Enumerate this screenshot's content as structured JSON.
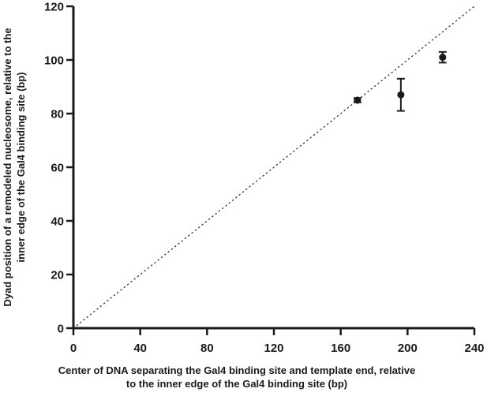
{
  "chart_data": {
    "type": "scatter",
    "title": "",
    "xlabel_lines": [
      "Center of DNA separating the Gal4 binding site and template end, relative",
      "to the inner edge of the Gal4 binding site (bp)"
    ],
    "ylabel_lines": [
      "Dyad position of a remodeled nucleosome, relative to the",
      "inner edge of the Gal4 binding site (bp)"
    ],
    "xlim": [
      0,
      240
    ],
    "ylim": [
      0,
      120
    ],
    "xticks": [
      0,
      40,
      80,
      120,
      160,
      200,
      240
    ],
    "yticks": [
      0,
      20,
      40,
      60,
      80,
      100,
      120
    ],
    "grid": false,
    "series": [
      {
        "points": [
          {
            "x": 170,
            "y": 85,
            "err": 0.8
          },
          {
            "x": 196,
            "y": 87,
            "err": 6
          },
          {
            "x": 221,
            "y": 101,
            "err": 2
          }
        ]
      }
    ],
    "reference_line": {
      "style": "dotted",
      "x": [
        0,
        240
      ],
      "y": [
        0,
        120
      ]
    },
    "colors": {
      "marker": "#1a1a1a",
      "axis": "#1a1a1a"
    }
  }
}
